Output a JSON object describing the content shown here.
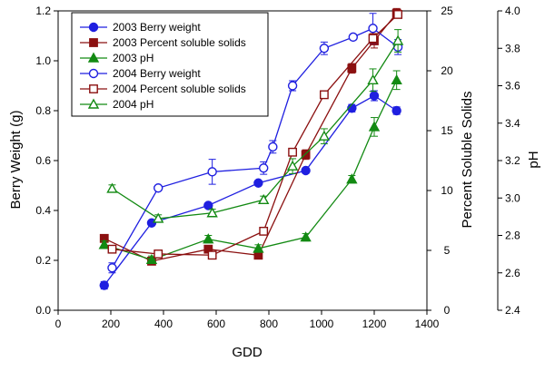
{
  "chart_data": {
    "type": "line",
    "title": "",
    "xlabel": "GDD",
    "ylabel_left": "Berry Weight (g)",
    "ylabel_right1": "Percent Soluble Solids",
    "ylabel_right2": "pH",
    "xlim": [
      0,
      1400
    ],
    "ylim_left": [
      0,
      1.2
    ],
    "ylim_right1": [
      0,
      25
    ],
    "ylim_right2": [
      2.4,
      4.0
    ],
    "x_ticks": [
      "0",
      "200",
      "400",
      "600",
      "800",
      "1000",
      "1200",
      "1400"
    ],
    "y_left_ticks": [
      "0.0",
      "0.2",
      "0.4",
      "0.6",
      "0.8",
      "1.0",
      "1.2"
    ],
    "y_right1_ticks": [
      "0",
      "5",
      "10",
      "15",
      "20",
      "25"
    ],
    "y_right2_ticks": [
      "2.4",
      "2.6",
      "2.8",
      "3.0",
      "3.2",
      "3.4",
      "3.6",
      "3.8",
      "4.0"
    ],
    "grid": false,
    "legend_position": "top-left",
    "series": [
      {
        "name": "2003 Berry weight",
        "axis": "left",
        "marker": "circle",
        "filled": true,
        "color": "#1f1fe0",
        "x": [
          175,
          355,
          570,
          760,
          940,
          1115,
          1200,
          1285
        ],
        "y": [
          0.1,
          0.35,
          0.42,
          0.51,
          0.56,
          0.81,
          0.86,
          0.8
        ],
        "err": [
          0.015,
          0.01,
          0.01,
          0.01,
          0.01,
          0.015,
          0.02,
          0.015
        ]
      },
      {
        "name": "2003 Percent soluble solids",
        "axis": "right1",
        "marker": "square",
        "filled": true,
        "color": "#8b1010",
        "x": [
          175,
          355,
          570,
          760,
          940,
          1115,
          1200,
          1285
        ],
        "y": [
          6.0,
          4.1,
          5.1,
          4.6,
          13.0,
          20.2,
          22.5,
          24.8
        ],
        "err": [
          0.2,
          0.2,
          0.2,
          0.2,
          0.4,
          0.4,
          0.6,
          0.4
        ]
      },
      {
        "name": "2003 pH",
        "axis": "right2",
        "marker": "triangle",
        "filled": true,
        "color": "#138a13",
        "x": [
          175,
          355,
          570,
          760,
          940,
          1115,
          1200,
          1285
        ],
        "y": [
          2.75,
          2.67,
          2.78,
          2.73,
          2.79,
          3.1,
          3.38,
          3.63
        ],
        "err": [
          0.02,
          0.02,
          0.02,
          0.02,
          0.02,
          0.02,
          0.05,
          0.05
        ]
      },
      {
        "name": "2004 Berry weight",
        "axis": "left",
        "marker": "circle",
        "filled": false,
        "color": "#1f1fe0",
        "x": [
          205,
          380,
          585,
          780,
          815,
          890,
          1010,
          1120,
          1195,
          1290
        ],
        "y": [
          0.17,
          0.49,
          0.555,
          0.57,
          0.655,
          0.9,
          1.05,
          1.095,
          1.13,
          1.055
        ],
        "err": [
          0.02,
          0.01,
          0.05,
          0.025,
          0.025,
          0.02,
          0.025,
          0.01,
          0.06,
          0.03
        ]
      },
      {
        "name": "2004 Percent soluble solids",
        "axis": "right1",
        "marker": "square",
        "filled": false,
        "color": "#8b1010",
        "x": [
          205,
          380,
          585,
          780,
          890,
          1010,
          1195,
          1290
        ],
        "y": [
          5.1,
          4.7,
          4.6,
          6.6,
          13.2,
          18.0,
          22.7,
          24.7
        ],
        "err": [
          0.2,
          0.2,
          0.2,
          0.2,
          0.3,
          0.3,
          0.4,
          0.3
        ]
      },
      {
        "name": "2004 pH",
        "axis": "right2",
        "marker": "triangle",
        "filled": false,
        "color": "#138a13",
        "x": [
          205,
          380,
          585,
          780,
          890,
          1010,
          1195,
          1290
        ],
        "y": [
          3.05,
          2.89,
          2.92,
          2.99,
          3.17,
          3.33,
          3.63,
          3.84
        ],
        "err": [
          0.02,
          0.02,
          0.02,
          0.02,
          0.04,
          0.04,
          0.06,
          0.06
        ]
      }
    ]
  }
}
